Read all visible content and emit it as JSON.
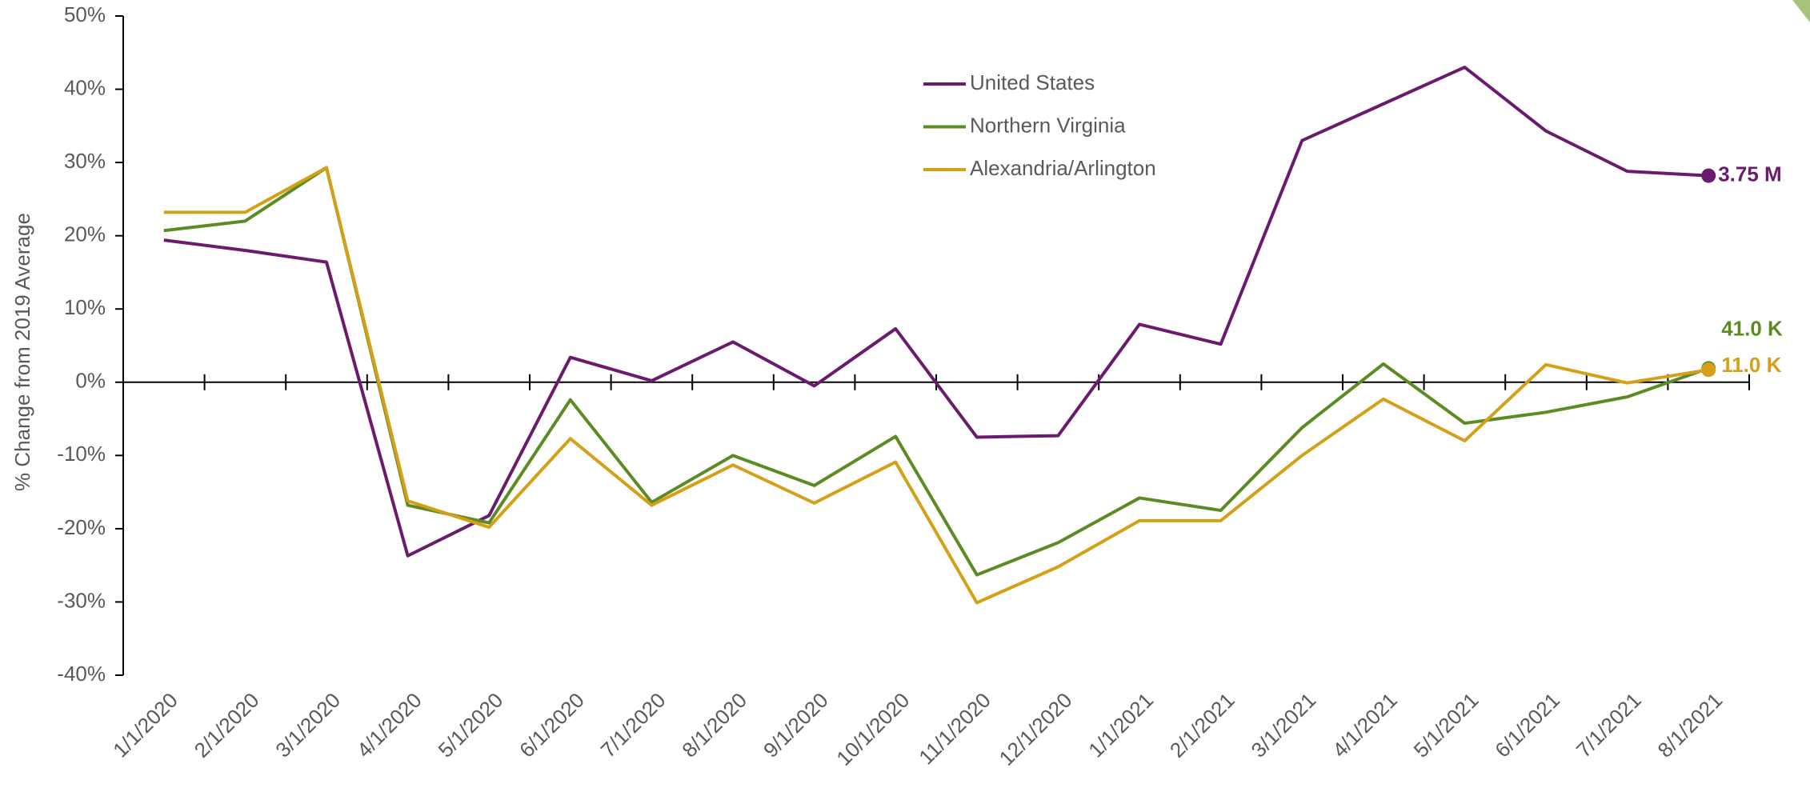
{
  "chart_data": {
    "type": "line",
    "y_label": "% Change from 2019 Average",
    "categories": [
      "1/1/2020",
      "2/1/2020",
      "3/1/2020",
      "4/1/2020",
      "5/1/2020",
      "6/1/2020",
      "7/1/2020",
      "8/1/2020",
      "9/1/2020",
      "10/1/2020",
      "11/1/2020",
      "12/1/2020",
      "1/1/2021",
      "2/1/2021",
      "3/1/2021",
      "4/1/2021",
      "5/1/2021",
      "6/1/2021",
      "7/1/2021",
      "8/1/2021"
    ],
    "series": [
      {
        "name": "United States",
        "color": "#6a1b6e",
        "end_label": "3.75 M",
        "values": [
          19.4,
          18.0,
          16.4,
          -23.7,
          -18.2,
          3.4,
          0.2,
          5.5,
          -0.5,
          7.3,
          -7.5,
          -7.3,
          7.9,
          5.2,
          33.0,
          38.0,
          43.0,
          34.3,
          28.8,
          28.2
        ]
      },
      {
        "name": "Northern Virginia",
        "color": "#5b8c23",
        "end_label": "41.0 K",
        "values": [
          20.7,
          22.0,
          29.3,
          -16.8,
          -19.2,
          -2.4,
          -16.4,
          -10.0,
          -14.1,
          -7.4,
          -26.3,
          -21.9,
          -15.8,
          -17.5,
          -6.2,
          2.5,
          -5.6,
          -4.1,
          -2.0,
          1.9
        ]
      },
      {
        "name": "Alexandria/Arlington",
        "color": "#d4a017",
        "end_label": "11.0 K",
        "values": [
          23.2,
          23.2,
          29.3,
          -16.2,
          -19.8,
          -7.7,
          -16.8,
          -11.3,
          -16.5,
          -10.9,
          -30.1,
          -25.2,
          -18.9,
          -18.9,
          -10.0,
          -2.3,
          -8.0,
          2.4,
          -0.1,
          1.7
        ]
      }
    ],
    "ylim": [
      -40,
      50
    ],
    "yticks": [
      {
        "value": -40,
        "label": "-40%"
      },
      {
        "value": -30,
        "label": "-30%"
      },
      {
        "value": -20,
        "label": "-20%"
      },
      {
        "value": -10,
        "label": "-10%"
      },
      {
        "value": 0,
        "label": "0%"
      },
      {
        "value": 10,
        "label": "10%"
      },
      {
        "value": 20,
        "label": "20%"
      },
      {
        "value": 30,
        "label": "30%"
      },
      {
        "value": 40,
        "label": "40%"
      },
      {
        "value": 50,
        "label": "50%"
      }
    ],
    "grid": false,
    "legend": "top"
  }
}
